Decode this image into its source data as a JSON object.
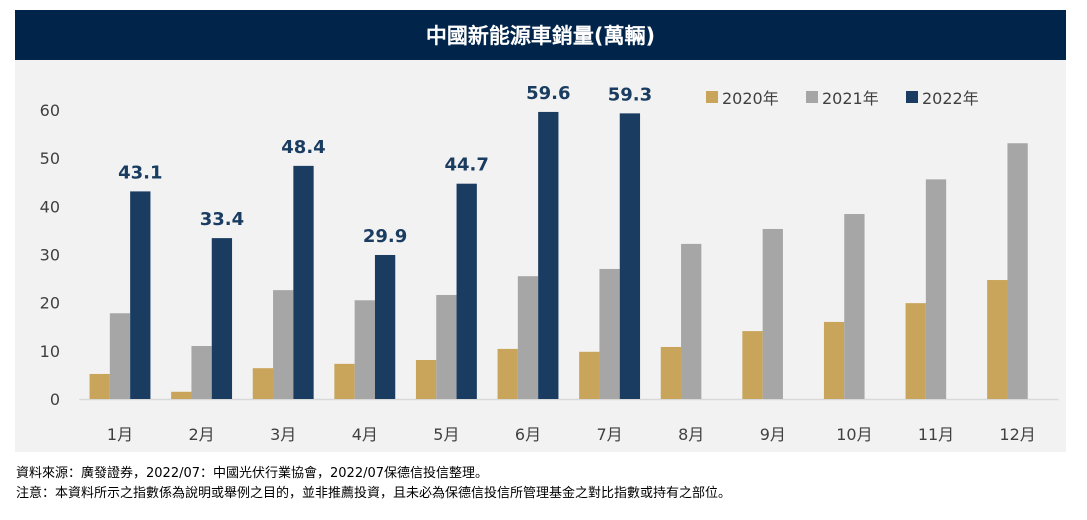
{
  "chart_data": {
    "type": "bar",
    "title": "中國新能源車銷量(萬輛)",
    "xlabel": "",
    "ylabel": "",
    "ylim": [
      0,
      60
    ],
    "yticks": [
      "0",
      "10",
      "20",
      "30",
      "40",
      "50",
      "60"
    ],
    "grid": false,
    "legend_position": "top-right",
    "categories": [
      "1月",
      "2月",
      "3月",
      "4月",
      "5月",
      "6月",
      "7月",
      "8月",
      "9月",
      "10月",
      "11月",
      "12月"
    ],
    "series": [
      {
        "name": "2020年",
        "color": "#C8A55A",
        "values": [
          5.2,
          1.5,
          6.4,
          7.3,
          8.1,
          10.4,
          9.8,
          10.8,
          14.1,
          16.0,
          19.9,
          24.7
        ]
      },
      {
        "name": "2021年",
        "color": "#A6A6A6",
        "values": [
          17.8,
          11.0,
          22.6,
          20.5,
          21.6,
          25.5,
          27.0,
          32.2,
          35.3,
          38.4,
          45.6,
          53.1
        ]
      },
      {
        "name": "2022年",
        "color": "#1A3C61",
        "values": [
          43.1,
          33.4,
          48.4,
          29.9,
          44.7,
          59.6,
          59.3,
          null,
          null,
          null,
          null,
          null
        ],
        "data_labels": [
          "43.1",
          "33.4",
          "48.4",
          "29.9",
          "44.7",
          "59.6",
          "59.3"
        ]
      }
    ]
  },
  "footer": {
    "source": "資料來源：廣發證券，2022/07：中國光伏行業協會，2022/07保德信投信整理。",
    "note": "注意：本資料所示之指數係為說明或舉例之目的，並非推薦投資，且未必為保德信投信所管理基金之對比指數或持有之部位。"
  }
}
